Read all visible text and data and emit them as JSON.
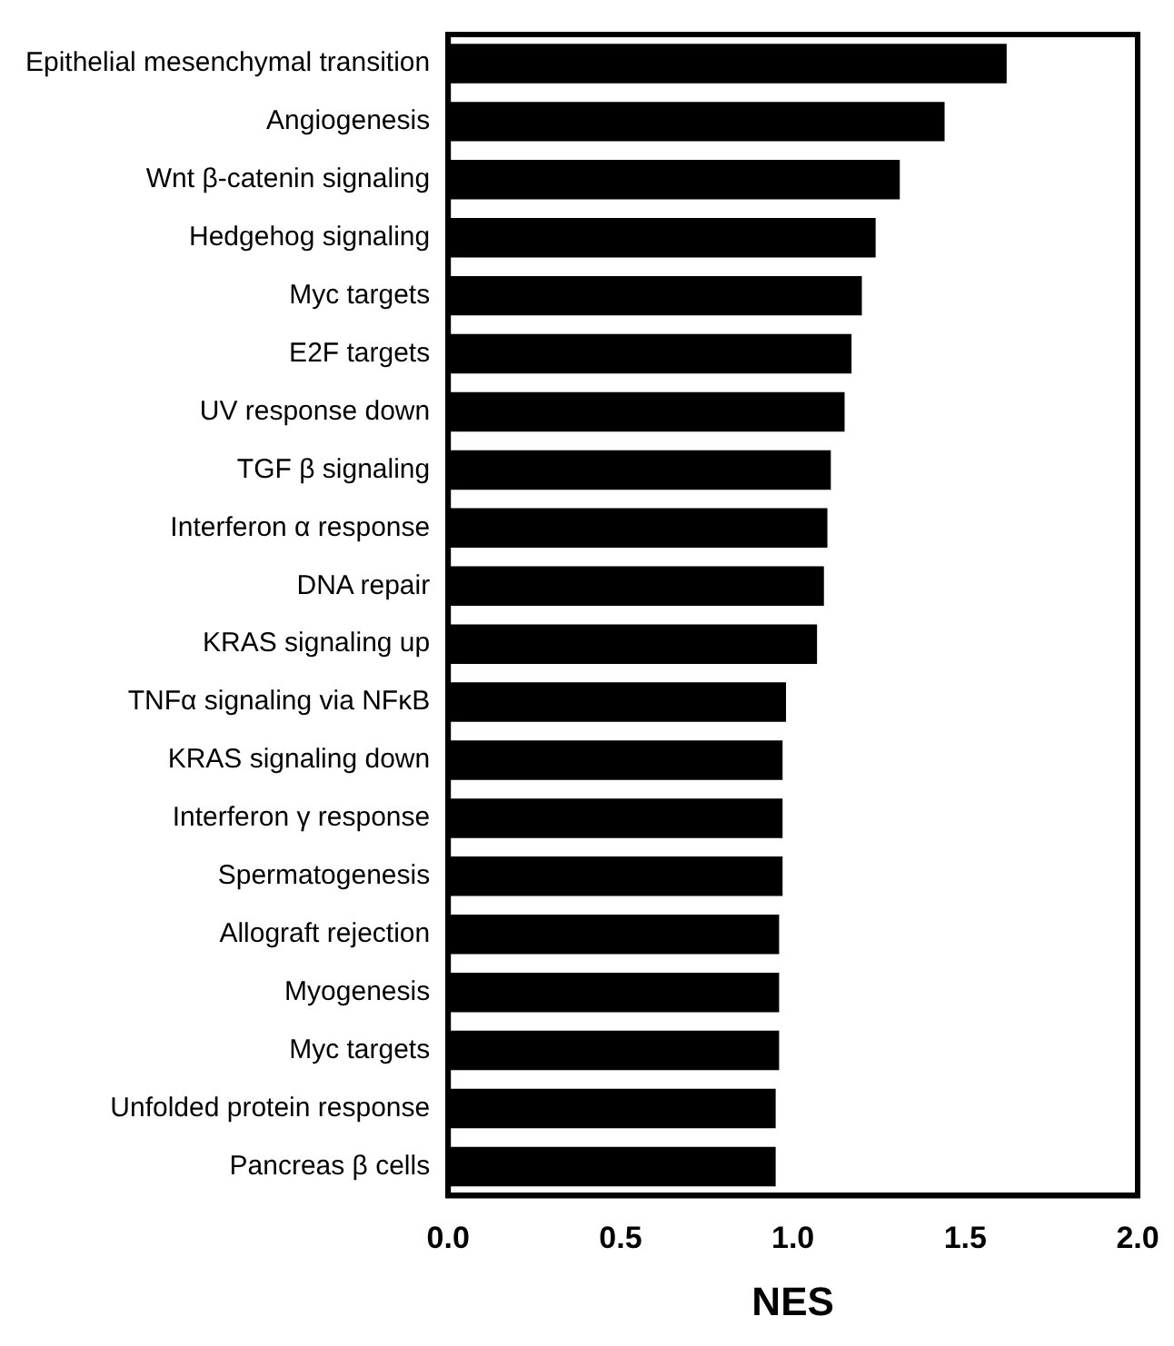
{
  "chart_data": {
    "type": "bar",
    "orientation": "horizontal",
    "xlabel": "NES",
    "categories": [
      "Epithelial mesenchymal transition",
      "Angiogenesis",
      "Wnt β-catenin signaling",
      "Hedgehog signaling",
      "Myc targets",
      "E2F targets",
      "UV response down",
      "TGF β signaling",
      "Interferon α response",
      "DNA repair",
      "KRAS signaling up",
      "TNFα signaling via NFκB",
      "KRAS signaling down",
      "Interferon γ response",
      "Spermatogenesis",
      "Allograft rejection",
      "Myogenesis",
      "Myc targets",
      "Unfolded protein response",
      "Pancreas β cells"
    ],
    "values": [
      1.62,
      1.44,
      1.31,
      1.24,
      1.2,
      1.17,
      1.15,
      1.11,
      1.1,
      1.09,
      1.07,
      0.98,
      0.97,
      0.97,
      0.97,
      0.96,
      0.96,
      0.96,
      0.95,
      0.95
    ],
    "color": "#000000",
    "xlim": [
      0,
      2
    ],
    "xticks": [
      {
        "value": 0,
        "label": "0.0"
      },
      {
        "value": 0.5,
        "label": "0.5"
      },
      {
        "value": 1,
        "label": "1.0"
      },
      {
        "value": 1.5,
        "label": "1.5"
      },
      {
        "value": 2,
        "label": "2.0"
      }
    ],
    "grid": false
  }
}
